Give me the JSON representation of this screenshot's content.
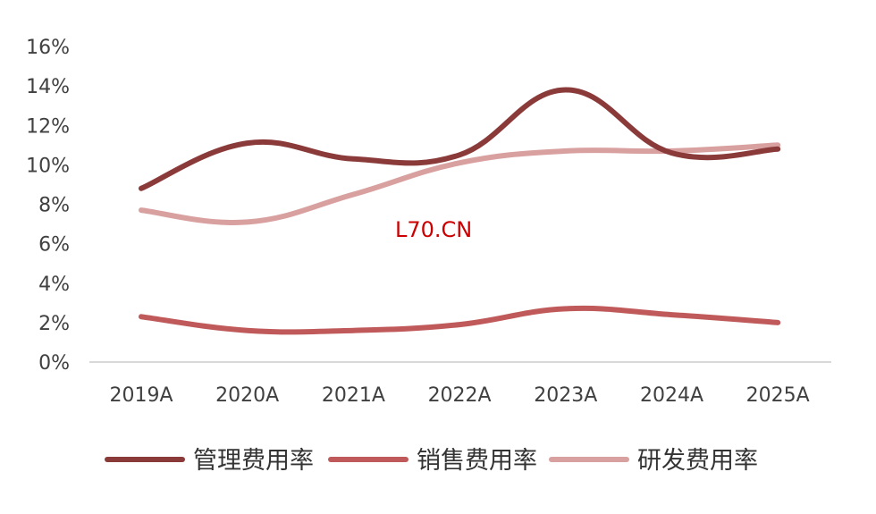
{
  "chart_data": {
    "type": "line",
    "title": "",
    "xlabel": "",
    "ylabel": "",
    "categories": [
      "2019A",
      "2020A",
      "2021A",
      "2022A",
      "2023A",
      "2024A",
      "2025A"
    ],
    "ylim": [
      0,
      16
    ],
    "y_ticks": [
      "0%",
      "2%",
      "4%",
      "6%",
      "8%",
      "10%",
      "12%",
      "14%",
      "16%"
    ],
    "grid": false,
    "legend_position": "bottom",
    "series": [
      {
        "name": "管理费用率",
        "color": "#8B3A3A",
        "values": [
          8.8,
          11.1,
          10.3,
          10.5,
          13.8,
          10.6,
          10.8
        ]
      },
      {
        "name": "销售费用率",
        "color": "#C05A5A",
        "values": [
          2.3,
          1.6,
          1.6,
          1.9,
          2.7,
          2.4,
          2.0
        ]
      },
      {
        "name": "研发费用率",
        "color": "#D9A0A0",
        "values": [
          7.7,
          7.1,
          8.5,
          10.1,
          10.7,
          10.7,
          11.0
        ]
      }
    ],
    "annotations": [
      {
        "text": "L70.CN",
        "color": "#CC0000"
      }
    ]
  }
}
